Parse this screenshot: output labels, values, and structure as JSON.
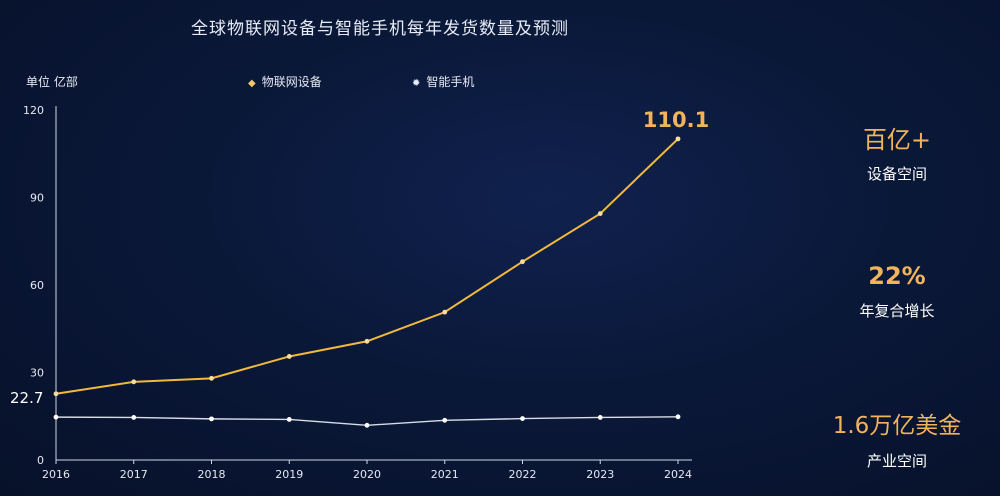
{
  "title": "全球物联网设备与智能手机每年发货数量及预测",
  "unit_label": "单位 亿部",
  "colors": {
    "background": "#0a1838",
    "iot_line": "#f2b93a",
    "phone_line": "#d8dce8",
    "accent_text": "#f2b45a",
    "axis": "#cfd6e6"
  },
  "chart_data": {
    "type": "line",
    "title": "全球物联网设备与智能手机每年发货数量及预测",
    "ylabel": "单位 亿部",
    "xlabel": "",
    "x": [
      "2016",
      "2017",
      "2018",
      "2019",
      "2020",
      "2021",
      "2022",
      "2023",
      "2024"
    ],
    "ylim": [
      0,
      120
    ],
    "yticks": [
      "0",
      "30",
      "60",
      "90",
      "120"
    ],
    "series": [
      {
        "name": "物联网设备",
        "color": "#f2b93a",
        "marker": "diamond",
        "values": [
          22.7,
          26.8,
          28.0,
          35.5,
          40.7,
          50.7,
          68.0,
          84.5,
          110.1
        ]
      },
      {
        "name": "智能手机",
        "color": "#d8dce8",
        "marker": "circle",
        "values": [
          14.7,
          14.6,
          14.1,
          13.9,
          11.9,
          13.6,
          14.2,
          14.6,
          14.8
        ]
      }
    ],
    "annotations": [
      {
        "text": "22.7",
        "series": 0,
        "index": 0
      },
      {
        "text": "110.1",
        "series": 0,
        "index": 8
      }
    ],
    "legend_position": "top"
  },
  "side_stats": [
    {
      "value": "百亿+",
      "caption": "设备空间"
    },
    {
      "value": "22%",
      "caption": "年复合增长"
    },
    {
      "value": "1.6万亿美金",
      "caption": "产业空间"
    }
  ]
}
